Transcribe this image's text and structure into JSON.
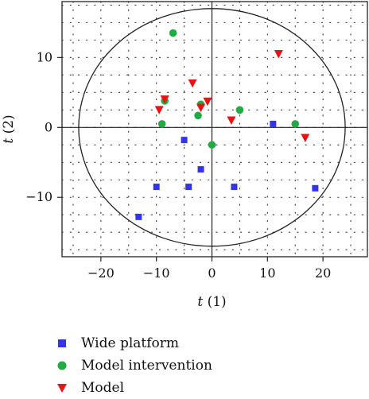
{
  "chart_data": {
    "type": "scatter",
    "title": "",
    "xlabel": "t (1)",
    "xlabel_var": "t",
    "xlabel_idx": "(1)",
    "ylabel": "t (2)",
    "ylabel_var": "t",
    "ylabel_idx": "(2)",
    "xlim": [
      -27,
      28
    ],
    "ylim": [
      -18.5,
      18
    ],
    "xticks": [
      -20,
      -10,
      0,
      10,
      20
    ],
    "yticks": [
      -10,
      0,
      10
    ],
    "xtick_labels": [
      "−20",
      "−10",
      "0",
      "10",
      "20"
    ],
    "ytick_labels": [
      "−10",
      "0",
      "10"
    ],
    "grid": true,
    "grid_style": "dotted",
    "hotelling_ellipse": {
      "cx": 0,
      "cy": 0,
      "rx": 24,
      "ry": 17
    },
    "legend_position": "bottom",
    "series": [
      {
        "name": "Wide platform",
        "marker": "square",
        "color": "#3333ee",
        "points": [
          [
            -13.2,
            -12.8
          ],
          [
            -10,
            -8.5
          ],
          [
            -4.2,
            -8.5
          ],
          [
            -5,
            -1.8
          ],
          [
            -2,
            -6
          ],
          [
            4,
            -8.5
          ],
          [
            11,
            0.5
          ],
          [
            18.6,
            -8.7
          ]
        ]
      },
      {
        "name": "Model intervention",
        "marker": "circle",
        "color": "#22aa44",
        "points": [
          [
            -7,
            13.5
          ],
          [
            -8.5,
            3.8
          ],
          [
            -9,
            0.5
          ],
          [
            -2,
            3.3
          ],
          [
            -2.5,
            1.7
          ],
          [
            0,
            -2.5
          ],
          [
            5,
            2.5
          ],
          [
            15,
            0.5
          ]
        ]
      },
      {
        "name": "Model",
        "marker": "triangle-down",
        "color": "#ee1111",
        "points": [
          [
            -8.5,
            4
          ],
          [
            -9.5,
            2.5
          ],
          [
            -3.5,
            6.3
          ],
          [
            -2,
            2.8
          ],
          [
            -0.8,
            3.7
          ],
          [
            3.5,
            1
          ],
          [
            12,
            10.5
          ],
          [
            16.8,
            -1.5
          ]
        ]
      }
    ]
  }
}
